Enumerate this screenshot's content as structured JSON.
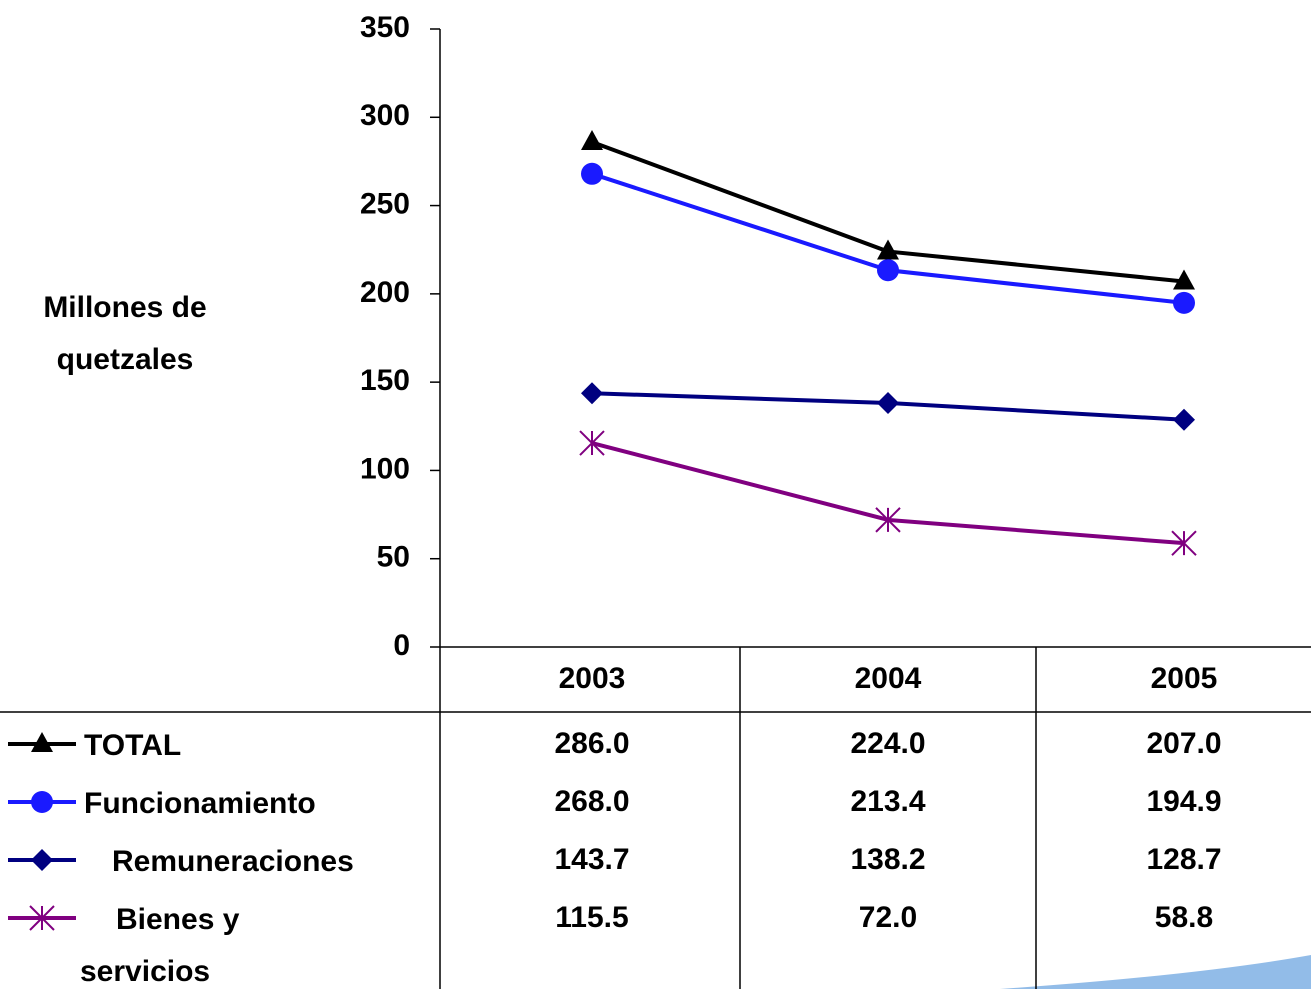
{
  "chart_data": {
    "type": "line",
    "y_label": "Millones de quetzales",
    "categories": [
      "2003",
      "2004",
      "2005"
    ],
    "ylim": [
      0,
      350
    ],
    "yticks": [
      0,
      50,
      100,
      150,
      200,
      250,
      300,
      350
    ],
    "grid": false,
    "series": [
      {
        "name": "TOTAL",
        "color": "#000000",
        "marker": "triangle",
        "values": [
          286,
          224,
          207
        ],
        "value_labels": [
          "286.0",
          "224.0",
          "207.0"
        ]
      },
      {
        "name": "Funcionamiento",
        "color": "#1a1aff",
        "marker": "circle",
        "values": [
          268,
          213.4,
          194.9
        ],
        "value_labels": [
          "268.0",
          "213.4",
          "194.9"
        ]
      },
      {
        "name": "Remuneraciones",
        "color": "#000080",
        "marker": "diamond",
        "values": [
          143.7,
          138.2,
          128.7
        ],
        "value_labels": [
          "143.7",
          "138.2",
          "128.7"
        ]
      },
      {
        "name": "Bienes y servicios",
        "color": "#800080",
        "marker": "asterisk",
        "values": [
          115.5,
          72,
          58.8
        ],
        "value_labels": [
          "115.5",
          "72.0",
          "58.8"
        ]
      }
    ]
  }
}
